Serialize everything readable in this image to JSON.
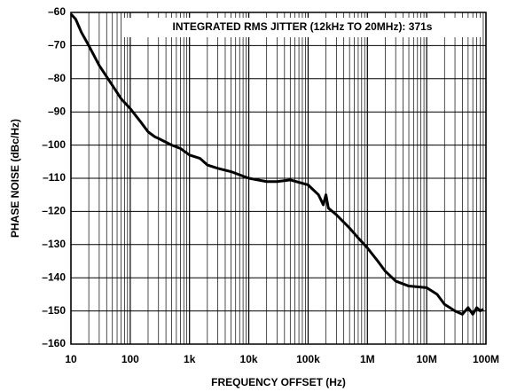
{
  "chart_data": {
    "type": "line",
    "annotation": "INTEGRATED RMS JITTER (12kHz TO 20MHz): 371s",
    "xlabel": "FREQUENCY OFFSET (Hz)",
    "ylabel": "PHASE NOISE (dBc/Hz)",
    "xscale": "log",
    "grid": true,
    "minor_grid": true,
    "color": "#000000",
    "xlim": [
      10,
      100000000
    ],
    "xticks": [
      10,
      100,
      {
        "value": 1000,
        "label": "1k"
      },
      {
        "value": 10000,
        "label": "10k"
      },
      {
        "value": 100000,
        "label": "100k"
      },
      {
        "value": 1000000,
        "label": "1M"
      },
      {
        "value": 10000000,
        "label": "10M"
      },
      {
        "value": 100000000,
        "label": "100M"
      }
    ],
    "ylim": [
      -160,
      -60
    ],
    "yticks": [
      {
        "value": -60,
        "label": "–60"
      },
      {
        "value": -70,
        "label": "–70"
      },
      {
        "value": -80,
        "label": "–80"
      },
      {
        "value": -90,
        "label": "–90"
      },
      {
        "value": -100,
        "label": "–100"
      },
      {
        "value": -110,
        "label": "–110"
      },
      {
        "value": -120,
        "label": "–120"
      },
      {
        "value": -130,
        "label": "–130"
      },
      {
        "value": -140,
        "label": "–140"
      },
      {
        "value": -150,
        "label": "–150"
      },
      {
        "value": -160,
        "label": "–160"
      }
    ],
    "x": [
      10,
      12,
      15,
      20,
      30,
      50,
      70,
      100,
      150,
      200,
      260,
      300,
      500,
      700,
      1000,
      1500,
      2000,
      3000,
      5000,
      10000,
      20000,
      30000,
      50000,
      100000,
      150000,
      180000,
      200000,
      220000,
      300000,
      500000,
      700000,
      1000000,
      1500000,
      2000000,
      3000000,
      5000000,
      10000000,
      15000000,
      20000000,
      30000000,
      40000000,
      50000000,
      60000000,
      70000000,
      80000000,
      90000000
    ],
    "values": [
      -60.5,
      -62,
      -66,
      -70,
      -76,
      -82,
      -86,
      -89,
      -93,
      -96,
      -97.5,
      -98,
      -100,
      -101,
      -103,
      -104,
      -106,
      -107,
      -108,
      -110,
      -111,
      -111,
      -110.5,
      -112,
      -115,
      -118,
      -115,
      -119,
      -121,
      -125,
      -128,
      -131,
      -135,
      -138,
      -141,
      -142.5,
      -143,
      -145,
      -148,
      -150,
      -151,
      -149,
      -151,
      -149,
      -150,
      -149.5
    ]
  }
}
